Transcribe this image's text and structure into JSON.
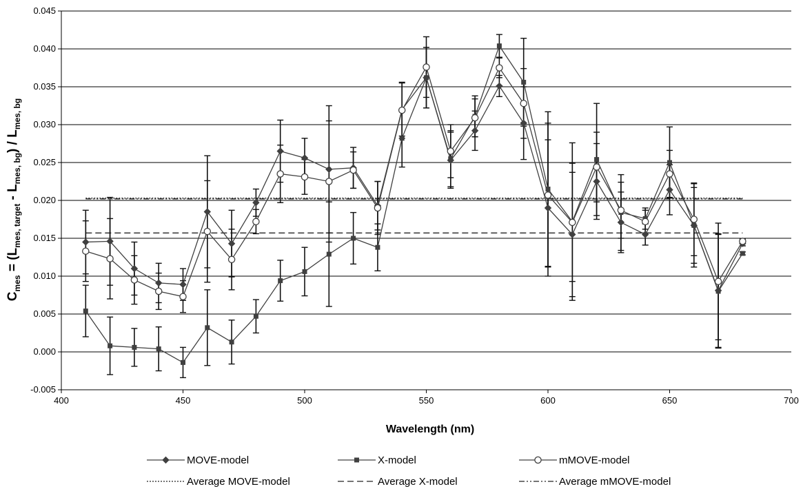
{
  "chart_data": {
    "type": "line",
    "xlabel": "Wavelength (nm)",
    "ylabel": {
      "parts": [
        {
          "text": "C",
          "sub": false
        },
        {
          "text": "mes",
          "sub": true
        },
        {
          "text": " = (L",
          "sub": false
        },
        {
          "text": "mes, target",
          "sub": true
        },
        {
          "text": " - L",
          "sub": false
        },
        {
          "text": "mes, bg",
          "sub": true
        },
        {
          "text": ") / L",
          "sub": false
        },
        {
          "text": "mes, bg",
          "sub": true
        }
      ]
    },
    "xlim": [
      400,
      700
    ],
    "ylim": [
      -0.005,
      0.045
    ],
    "xticks": [
      400,
      450,
      500,
      550,
      600,
      650,
      700
    ],
    "yticks": [
      -0.005,
      0.0,
      0.005,
      0.01,
      0.015,
      0.02,
      0.025,
      0.03,
      0.035,
      0.04,
      0.045
    ],
    "ytick_labels": [
      "-0.005",
      "0.000",
      "0.005",
      "0.010",
      "0.015",
      "0.020",
      "0.025",
      "0.030",
      "0.035",
      "0.040",
      "0.045"
    ],
    "grid": "horizontal",
    "legend_position": "bottom",
    "x": [
      410,
      420,
      430,
      440,
      450,
      460,
      470,
      480,
      490,
      500,
      510,
      520,
      530,
      540,
      550,
      560,
      570,
      580,
      590,
      600,
      610,
      620,
      630,
      640,
      650,
      660,
      670,
      680
    ],
    "series": [
      {
        "name": "MOVE-model",
        "marker": "diamond",
        "color": "#404040",
        "values": [
          0.0145,
          0.0146,
          0.011,
          0.0091,
          0.0089,
          0.0185,
          0.0143,
          0.0197,
          0.0265,
          0.0256,
          0.0241,
          0.0243,
          0.0193,
          0.032,
          0.0362,
          0.0253,
          0.0292,
          0.0351,
          0.0302,
          0.019,
          0.0155,
          0.0225,
          0.0171,
          0.0155,
          0.0214,
          0.0167,
          0.0081,
          0.0143
        ],
        "errors": [
          0.0042,
          0.0058,
          0.0035,
          0.0026,
          0.0021,
          0.0074,
          0.0044,
          0.0018,
          0.0041,
          0.0026,
          0.0084,
          0.0027,
          0.0032,
          0.0035,
          0.004,
          0.0037,
          0.0026,
          0.0014,
          0.0048,
          0.009,
          0.0082,
          0.005,
          0.004,
          0.0014,
          0.0033,
          0.005,
          0.0075,
          0.0003
        ]
      },
      {
        "name": "X-model",
        "marker": "square",
        "color": "#404040",
        "values": [
          0.0054,
          0.0008,
          0.0006,
          0.0004,
          -0.0014,
          0.0032,
          0.0013,
          0.0047,
          0.0094,
          0.0106,
          0.0129,
          0.015,
          0.0138,
          0.0282,
          0.0362,
          0.0255,
          0.0311,
          0.0404,
          0.0356,
          0.0215,
          0.0172,
          0.0254,
          0.0184,
          0.0176,
          0.025,
          0.0167,
          0.008,
          0.013
        ],
        "errors": [
          0.0034,
          0.0038,
          0.0025,
          0.0029,
          0.002,
          0.005,
          0.0029,
          0.0022,
          0.0027,
          0.0032,
          0.0069,
          0.0034,
          0.0031,
          0.0038,
          0.004,
          0.0037,
          0.0027,
          0.0015,
          0.0058,
          0.0102,
          0.0104,
          0.0074,
          0.005,
          0.0014,
          0.0047,
          0.0055,
          0.0075,
          0.0002
        ]
      },
      {
        "name": "mMOVE-model",
        "marker": "circle",
        "color": "#404040",
        "values": [
          0.0133,
          0.0123,
          0.0095,
          0.008,
          0.0073,
          0.0159,
          0.0122,
          0.0172,
          0.0235,
          0.0231,
          0.0225,
          0.024,
          0.019,
          0.0319,
          0.0376,
          0.0265,
          0.0309,
          0.0375,
          0.0328,
          0.0207,
          0.0171,
          0.0244,
          0.0187,
          0.0172,
          0.0235,
          0.0175,
          0.0093,
          0.0146
        ],
        "errors": [
          0.004,
          0.0053,
          0.0032,
          0.0024,
          0.0021,
          0.0067,
          0.004,
          0.0016,
          0.0038,
          0.0023,
          0.008,
          0.0024,
          0.0035,
          0.0037,
          0.004,
          0.0035,
          0.0025,
          0.0013,
          0.0046,
          0.0095,
          0.0078,
          0.0046,
          0.0037,
          0.0015,
          0.0031,
          0.0048,
          0.0077,
          0.0003
        ]
      }
    ],
    "averages": [
      {
        "name": "Average MOVE-model",
        "value": 0.0203,
        "dash": "dotted"
      },
      {
        "name": "Average X-model",
        "value": 0.0157,
        "dash": "dashed"
      },
      {
        "name": "Average mMOVE-model",
        "value": 0.0202,
        "dash": "dashdotdot"
      }
    ]
  }
}
